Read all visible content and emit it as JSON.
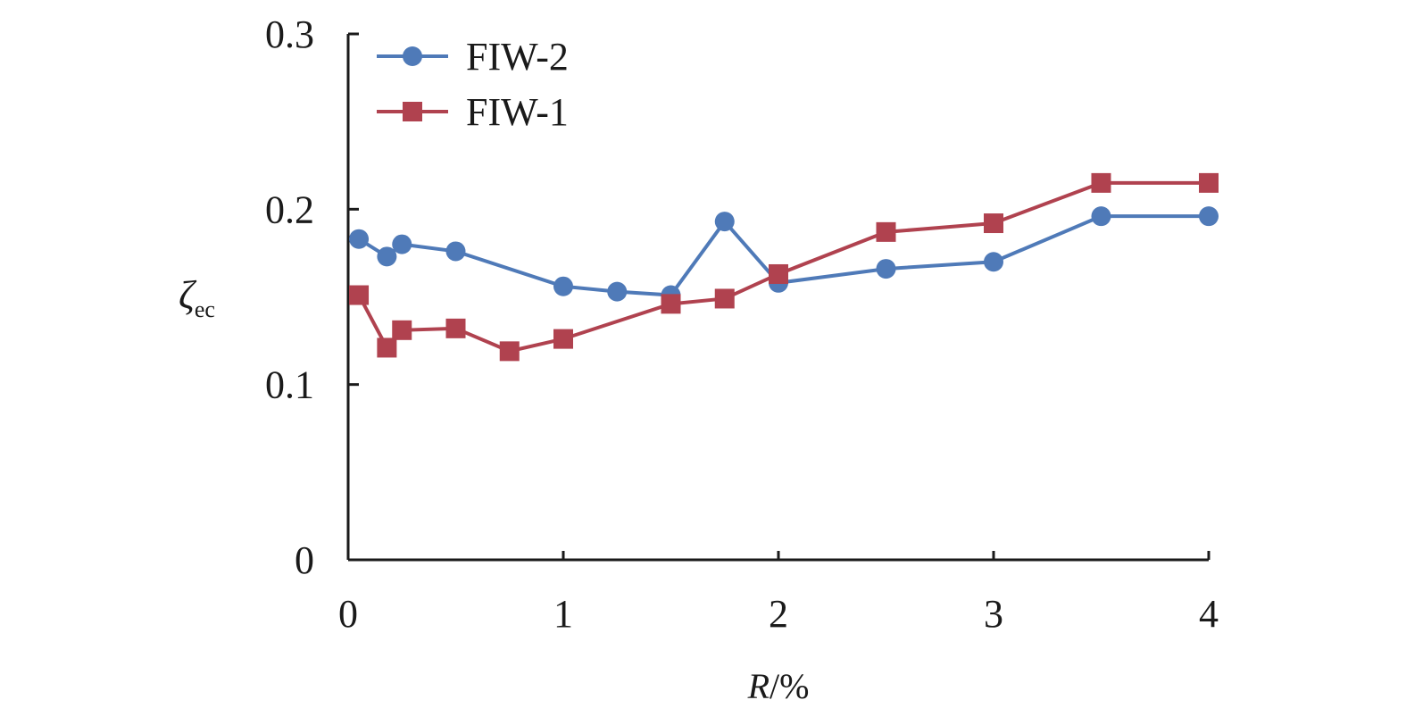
{
  "chart_data": {
    "type": "line",
    "title": "",
    "xlabel_italic": "R",
    "xlabel_rest": "/%",
    "ylabel_main": "ζ",
    "ylabel_sub": "ec",
    "xlim": [
      0,
      4
    ],
    "ylim": [
      0,
      0.3
    ],
    "xticks": [
      0,
      1,
      2,
      3,
      4
    ],
    "xtick_labels": [
      "0",
      "1",
      "2",
      "3",
      "4"
    ],
    "yticks": [
      0,
      0.1,
      0.2,
      0.3
    ],
    "ytick_labels": [
      "0",
      "0.1",
      "0.2",
      "0.3"
    ],
    "grid": false,
    "legend_position": "top-left",
    "series": [
      {
        "name": "FIW-2",
        "color": "#4f7ab8",
        "marker": "circle",
        "x": [
          0.05,
          0.18,
          0.25,
          0.5,
          1.0,
          1.25,
          1.5,
          1.75,
          2.0,
          2.5,
          3.0,
          3.5,
          4.0
        ],
        "y": [
          0.183,
          0.173,
          0.18,
          0.176,
          0.156,
          0.153,
          0.151,
          0.193,
          0.158,
          0.166,
          0.17,
          0.196,
          0.196
        ]
      },
      {
        "name": "FIW-1",
        "color": "#b0424f",
        "marker": "square",
        "x": [
          0.05,
          0.18,
          0.25,
          0.5,
          0.75,
          1.0,
          1.5,
          1.75,
          2.0,
          2.5,
          3.0,
          3.5,
          4.0
        ],
        "y": [
          0.151,
          0.121,
          0.131,
          0.132,
          0.119,
          0.126,
          0.146,
          0.149,
          0.163,
          0.187,
          0.192,
          0.215,
          0.215
        ]
      }
    ]
  }
}
